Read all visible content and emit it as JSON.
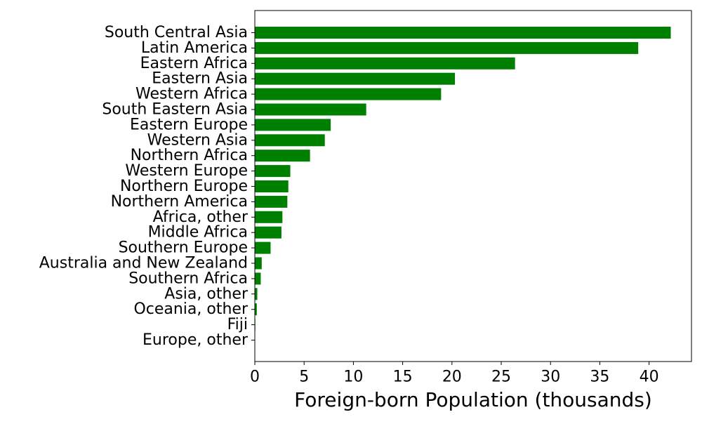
{
  "chart_data": {
    "type": "bar",
    "orientation": "horizontal",
    "title": "",
    "xlabel": "Foreign-born Population (thousands)",
    "ylabel": "",
    "xlim": [
      0,
      44.3
    ],
    "xticks": [
      0,
      5,
      10,
      15,
      20,
      25,
      30,
      35,
      40
    ],
    "bar_color": "#008000",
    "grid": false,
    "categories": [
      "South Central Asia",
      "Latin America",
      "Eastern Africa",
      "Eastern Asia",
      "Western Africa",
      "South Eastern Asia",
      "Eastern Europe",
      "Western Asia",
      "Northern Africa",
      "Western Europe",
      "Northern Europe",
      "Northern America",
      "Africa, other",
      "Middle Africa",
      "Southern Europe",
      "Australia and New Zealand",
      "Southern Africa",
      "Asia, other",
      "Oceania, other",
      "Fiji",
      "Europe, other"
    ],
    "values": [
      42.2,
      38.9,
      26.4,
      20.3,
      18.9,
      11.3,
      7.7,
      7.1,
      5.6,
      3.6,
      3.4,
      3.3,
      2.8,
      2.7,
      1.6,
      0.7,
      0.6,
      0.25,
      0.2,
      0.05,
      0.02
    ]
  }
}
